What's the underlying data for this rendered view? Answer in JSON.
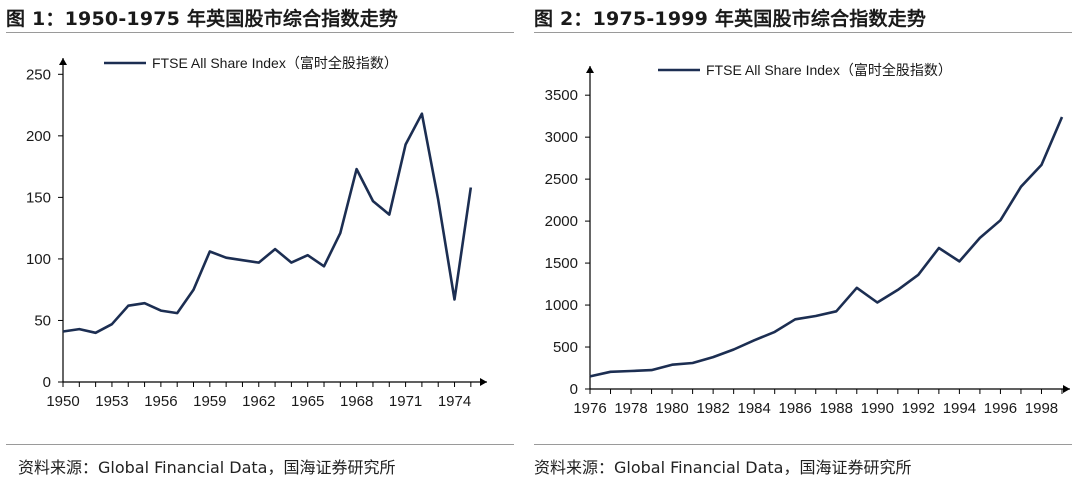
{
  "figures": [
    {
      "title": "图 1：1950-1975 年英国股市综合指数走势",
      "source": "资料来源：Global Financial Data，国海证券研究所"
    },
    {
      "title": "图 2：1975-1999 年英国股市综合指数走势",
      "source": "资料来源：Global Financial Data，国海证券研究所"
    }
  ],
  "colors": {
    "line": "#1c2e52",
    "axis": "#000000",
    "rule": "#9a9a9a"
  },
  "chart_data": [
    {
      "type": "line",
      "title": "图 1：1950-1975 年英国股市综合指数走势",
      "xlabel": "",
      "ylabel": "",
      "grid": false,
      "legend": "top-left",
      "xlim": [
        1950,
        1975.5
      ],
      "ylim": [
        0,
        260
      ],
      "xticks": [
        1950,
        1953,
        1956,
        1959,
        1962,
        1965,
        1968,
        1971,
        1974
      ],
      "yticks": [
        0,
        50,
        100,
        150,
        200,
        250
      ],
      "series": [
        {
          "name": "FTSE All Share Index（富时全股指数）",
          "x": [
            1950,
            1951,
            1952,
            1953,
            1954,
            1955,
            1956,
            1957,
            1958,
            1959,
            1960,
            1961,
            1962,
            1963,
            1964,
            1965,
            1966,
            1967,
            1968,
            1969,
            1970,
            1971,
            1972,
            1973,
            1974,
            1975
          ],
          "y": [
            41,
            43,
            40,
            47,
            62,
            64,
            58,
            56,
            75,
            106,
            101,
            99,
            97,
            108,
            97,
            103,
            94,
            121,
            173,
            147,
            136,
            193,
            218,
            148,
            67,
            158
          ]
        }
      ]
    },
    {
      "type": "line",
      "title": "图 2：1975-1999 年英国股市综合指数走势",
      "xlabel": "",
      "ylabel": "",
      "grid": false,
      "legend": "top-left",
      "xlim": [
        1976,
        1999
      ],
      "ylim": [
        0,
        3800
      ],
      "xticks": [
        1976,
        1978,
        1980,
        1982,
        1984,
        1986,
        1988,
        1990,
        1992,
        1994,
        1996,
        1998
      ],
      "yticks": [
        0,
        500,
        1000,
        1500,
        2000,
        2500,
        3000,
        3500
      ],
      "series": [
        {
          "name": "FTSE All Share Index（富时全股指数）",
          "x": [
            1976,
            1977,
            1978,
            1979,
            1980,
            1981,
            1982,
            1983,
            1984,
            1985,
            1986,
            1987,
            1988,
            1989,
            1990,
            1991,
            1992,
            1993,
            1994,
            1995,
            1996,
            1997,
            1998,
            1999
          ],
          "y": [
            150,
            205,
            215,
            225,
            290,
            310,
            380,
            470,
            580,
            680,
            830,
            870,
            925,
            1205,
            1030,
            1180,
            1360,
            1680,
            1520,
            1800,
            2010,
            2410,
            2670,
            3240
          ]
        }
      ]
    }
  ]
}
